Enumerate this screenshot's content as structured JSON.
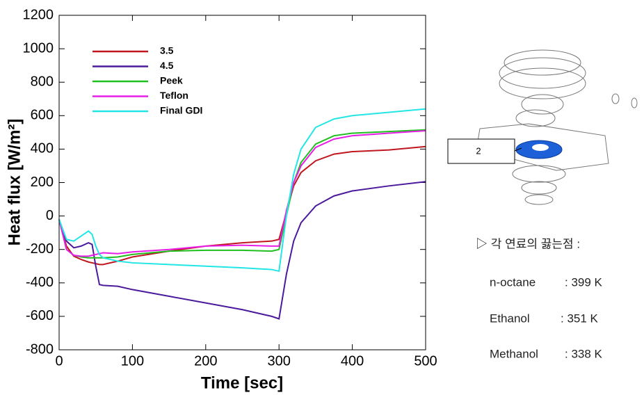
{
  "chart_data": {
    "type": "line",
    "x_label": "Time [sec]",
    "y_label": "Heat flux [W/m²]",
    "x": [
      0,
      10,
      20,
      30,
      40,
      45,
      50,
      55,
      60,
      80,
      100,
      150,
      200,
      250,
      290,
      300,
      310,
      320,
      330,
      350,
      375,
      400,
      450,
      500
    ],
    "series": [
      {
        "name": "3.5",
        "color": "#c0161e",
        "values": [
          -20,
          -180,
          -240,
          -260,
          -275,
          -280,
          -285,
          -290,
          -290,
          -270,
          -245,
          -210,
          -180,
          -160,
          -150,
          -140,
          20,
          180,
          260,
          330,
          370,
          385,
          395,
          415
        ]
      },
      {
        "name": "4.5",
        "color": "#4b1a9c",
        "values": [
          -20,
          -150,
          -190,
          -180,
          -160,
          -170,
          -300,
          -410,
          -415,
          -420,
          -440,
          -480,
          -520,
          -560,
          -600,
          -615,
          -350,
          -150,
          -40,
          60,
          120,
          150,
          180,
          205
        ]
      },
      {
        "name": "Peek",
        "color": "#1fbf1f",
        "values": [
          -20,
          -200,
          -235,
          -245,
          -250,
          -250,
          -250,
          -250,
          -250,
          -245,
          -230,
          -210,
          -205,
          -205,
          -210,
          -200,
          0,
          200,
          320,
          430,
          480,
          495,
          505,
          515
        ]
      },
      {
        "name": "Teflon",
        "color": "#e61ee6",
        "values": [
          -20,
          -200,
          -235,
          -240,
          -240,
          -235,
          -230,
          -225,
          -220,
          -225,
          -215,
          -200,
          -180,
          -175,
          -180,
          -180,
          30,
          200,
          300,
          410,
          460,
          480,
          495,
          510
        ]
      },
      {
        "name": "Final GDI",
        "color": "#22e6e6",
        "values": [
          -20,
          -140,
          -150,
          -120,
          -90,
          -110,
          -180,
          -230,
          -250,
          -270,
          -280,
          -290,
          -300,
          -310,
          -320,
          -330,
          0,
          250,
          400,
          530,
          580,
          600,
          620,
          640
        ]
      }
    ],
    "xlim": [
      0,
      500
    ],
    "xticks": [
      0,
      100,
      200,
      300,
      400,
      500
    ],
    "ylim": [
      -800,
      1200
    ],
    "yticks": [
      -800,
      -600,
      -400,
      -200,
      0,
      200,
      400,
      600,
      800,
      1000,
      1200
    ]
  },
  "side_panel": {
    "callout": "2",
    "heading": "▷ 각 연료의 끓는점 :",
    "rows": [
      [
        "n-octane",
        ": 399 K"
      ],
      [
        "Ethanol",
        ": 351 K"
      ],
      [
        "Methanol",
        ": 338 K"
      ]
    ]
  }
}
